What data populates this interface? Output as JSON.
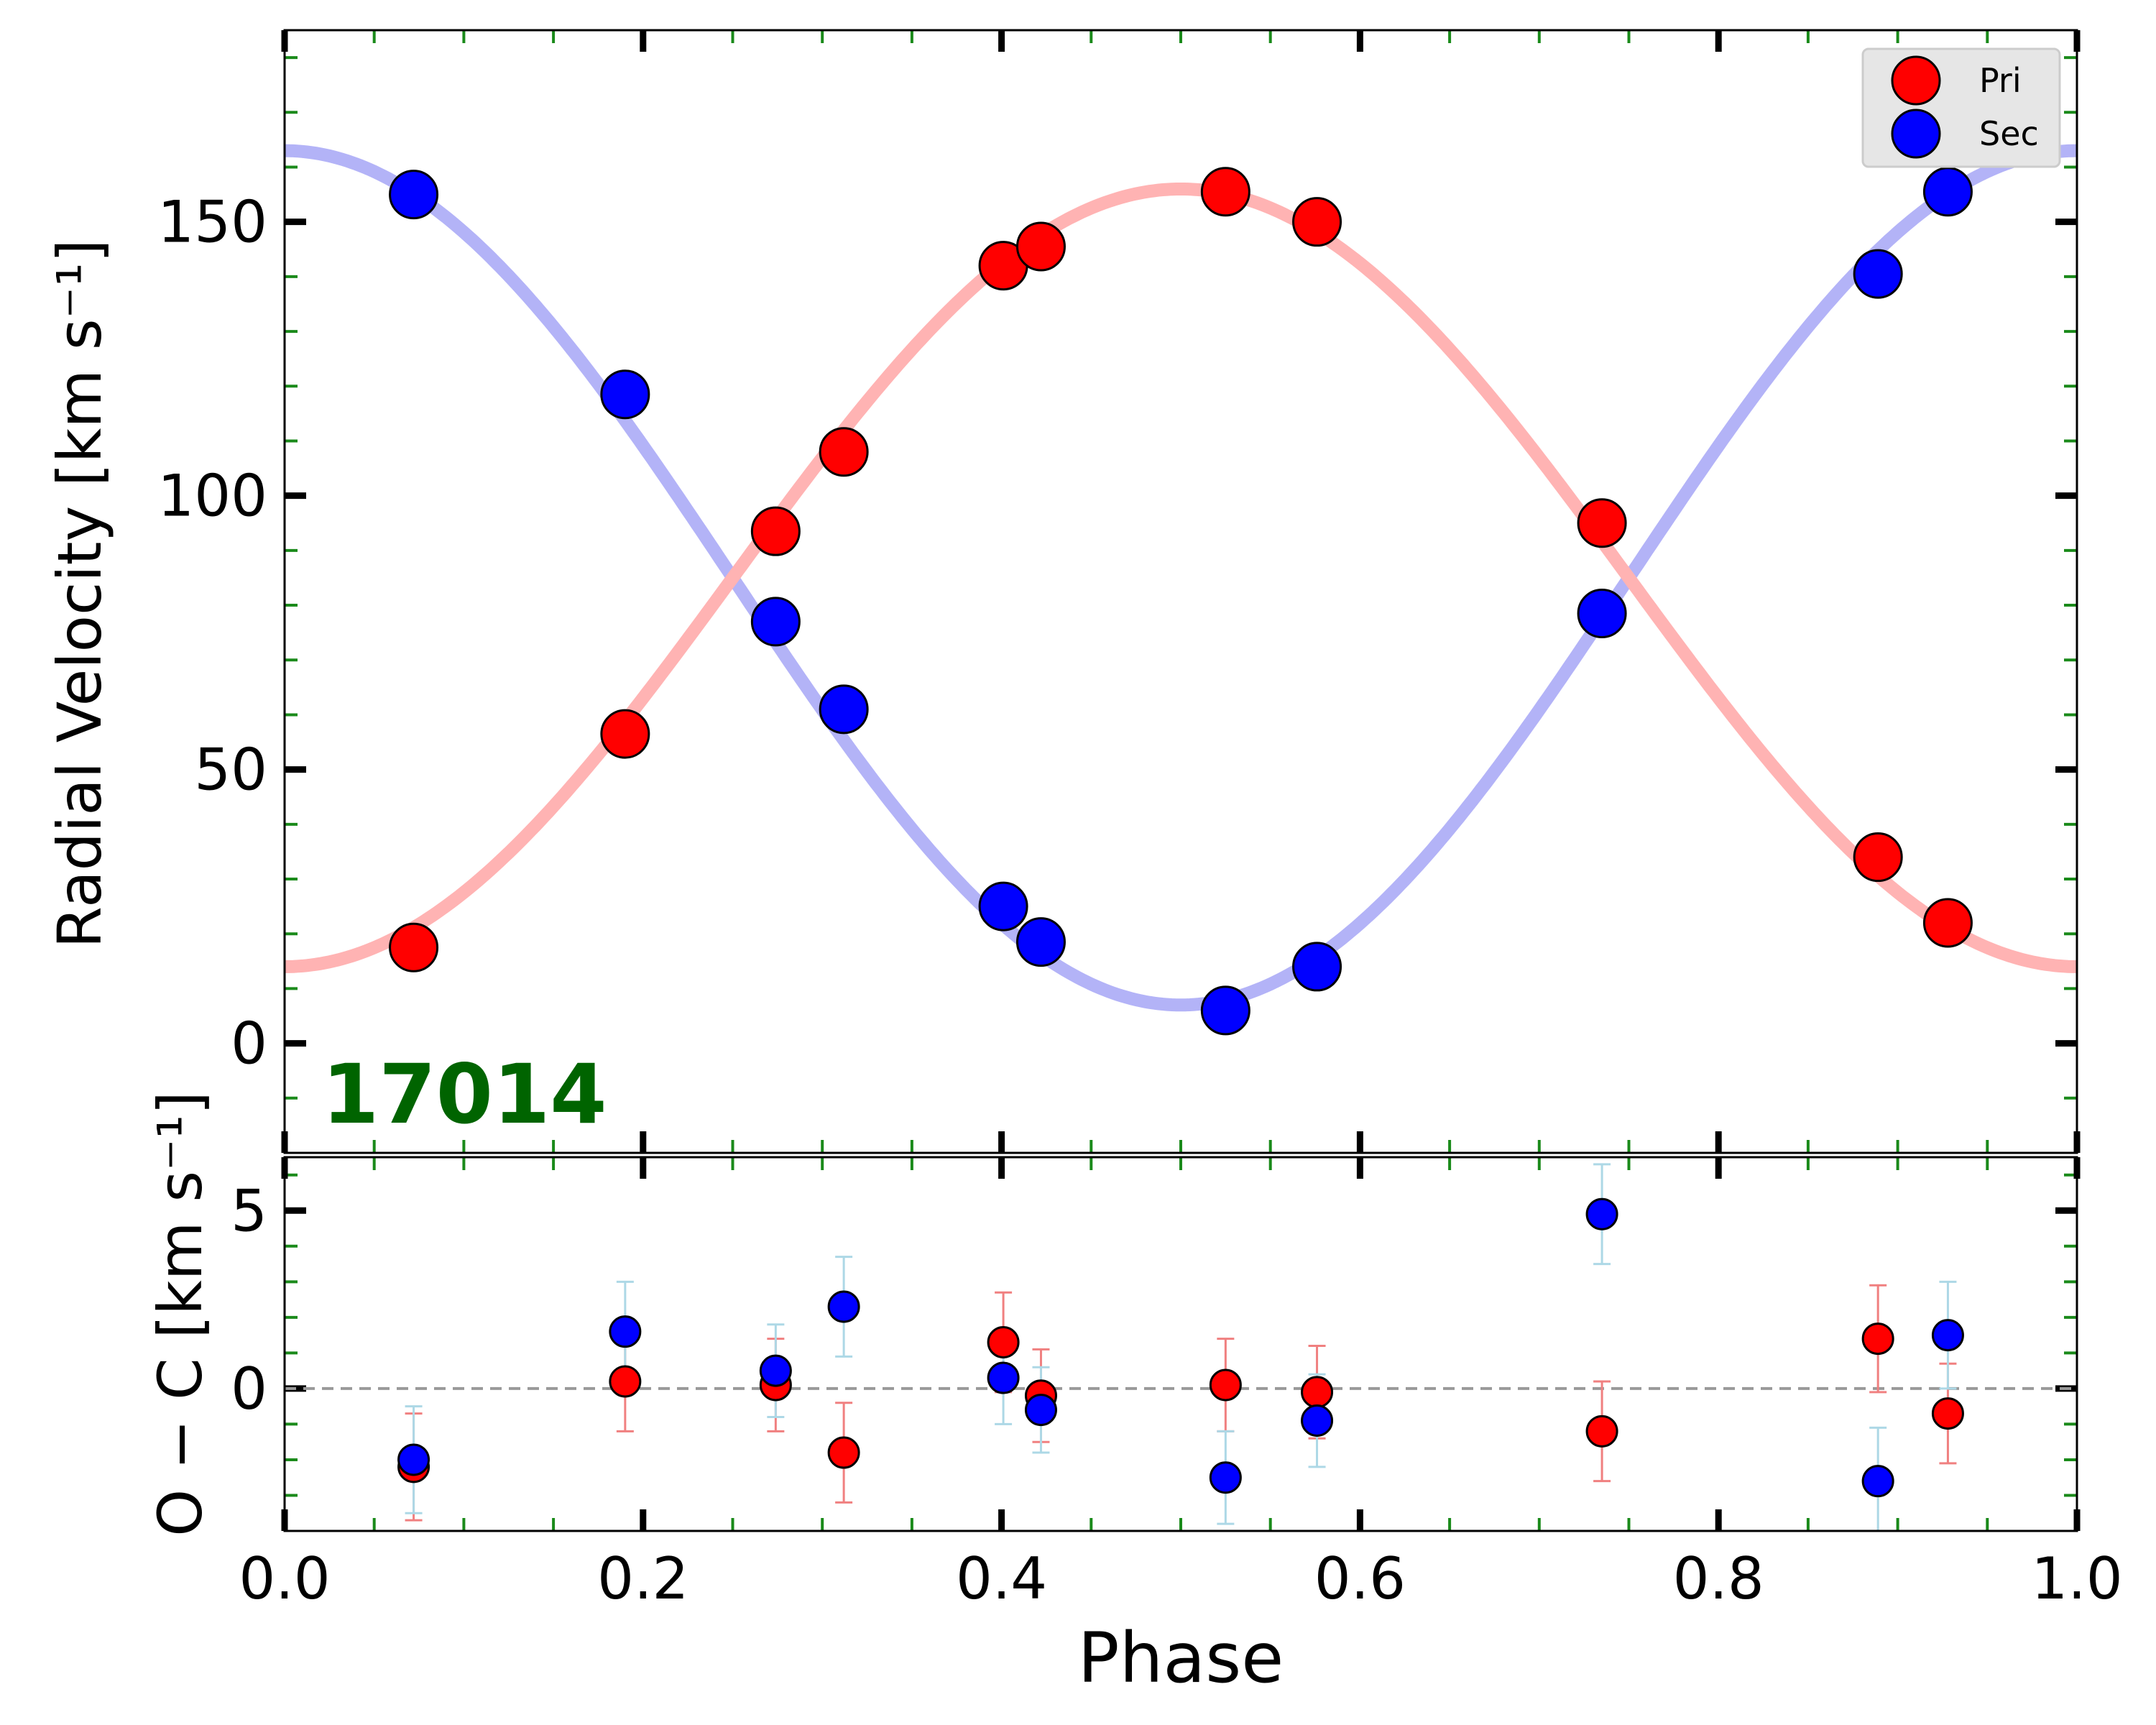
{
  "chart_data": [
    {
      "panel": "top",
      "type": "scatter",
      "ylabel": "Radial Velocity [km s⁻¹]",
      "ylim": [
        -20,
        185
      ],
      "yticks": [
        0,
        50,
        100,
        150
      ],
      "ytick_labels": [
        "0",
        "50",
        "100",
        "150"
      ],
      "annotation": "17014",
      "legend": {
        "placement": "top-right",
        "entries": [
          "Pri",
          "Sec"
        ]
      },
      "model": {
        "gamma": 85,
        "K1": 71,
        "K2": 78,
        "phase_min_primary": 0.0,
        "colors": [
          "#ffb3b3",
          "#b3b3f7"
        ]
      },
      "series": [
        {
          "name": "Pri",
          "color": "#ff0000",
          "x": [
            0.072,
            0.19,
            0.274,
            0.312,
            0.401,
            0.422,
            0.525,
            0.576,
            0.735,
            0.889,
            0.928
          ],
          "y": [
            17.5,
            56.5,
            93.5,
            108,
            142,
            145.5,
            155.5,
            150,
            95,
            34,
            22
          ]
        },
        {
          "name": "Sec",
          "color": "#0000ff",
          "x": [
            0.072,
            0.19,
            0.274,
            0.312,
            0.401,
            0.422,
            0.525,
            0.576,
            0.735,
            0.889,
            0.928
          ],
          "y": [
            155,
            118.5,
            77,
            61,
            25,
            18.5,
            6,
            14,
            78.5,
            140.5,
            155.5
          ]
        }
      ]
    },
    {
      "panel": "bottom",
      "type": "scatter",
      "xlabel": "Phase",
      "ylabel": "O − C [km s⁻¹]",
      "xlim": [
        0.0,
        1.0
      ],
      "xticks": [
        0.0,
        0.2,
        0.4,
        0.6,
        0.8,
        1.0
      ],
      "xtick_labels": [
        "0.0",
        "0.2",
        "0.4",
        "0.6",
        "0.8",
        "1.0"
      ],
      "ylim": [
        -4,
        6.5
      ],
      "yticks": [
        0,
        5
      ],
      "ytick_labels": [
        "0",
        "5"
      ],
      "reference_line": 0,
      "series": [
        {
          "name": "Pri",
          "color": "#ff0000",
          "errcolor": "#f08080",
          "x": [
            0.072,
            0.19,
            0.274,
            0.312,
            0.401,
            0.422,
            0.525,
            0.576,
            0.735,
            0.889,
            0.928
          ],
          "y": [
            -2.2,
            0.2,
            0.1,
            -1.8,
            1.3,
            -0.2,
            0.1,
            -0.1,
            -1.2,
            1.4,
            -0.7
          ],
          "err": [
            1.5,
            1.4,
            1.3,
            1.4,
            1.4,
            1.3,
            1.3,
            1.3,
            1.4,
            1.5,
            1.4
          ]
        },
        {
          "name": "Sec",
          "color": "#0000ff",
          "errcolor": "#add8e6",
          "x": [
            0.072,
            0.19,
            0.274,
            0.312,
            0.401,
            0.422,
            0.525,
            0.576,
            0.735,
            0.889,
            0.928
          ],
          "y": [
            -2.0,
            1.6,
            0.5,
            2.3,
            0.3,
            -0.6,
            -2.5,
            -0.9,
            4.9,
            -2.6,
            1.5
          ],
          "err": [
            1.5,
            1.4,
            1.3,
            1.4,
            1.3,
            1.2,
            1.3,
            1.3,
            1.4,
            1.5,
            1.5
          ]
        }
      ]
    }
  ]
}
